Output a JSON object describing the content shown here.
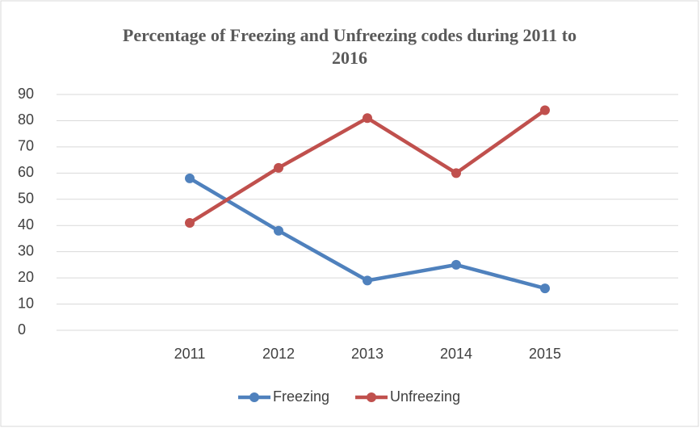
{
  "chart_data": {
    "type": "line",
    "title": "Percentage of Freezing and Unfreezing codes during 2011 to 2016",
    "categories": [
      null,
      "2011",
      "2012",
      "2013",
      "2014",
      "2015",
      null
    ],
    "series": [
      {
        "name": "Freezing",
        "color": "#4f81bd",
        "values": [
          null,
          58,
          38,
          19,
          25,
          16,
          null
        ]
      },
      {
        "name": "Unfreezing",
        "color": "#c0504d",
        "values": [
          null,
          41,
          62,
          81,
          60,
          84,
          null
        ]
      }
    ],
    "ylim": [
      0,
      90
    ],
    "yticks": [
      0,
      10,
      20,
      30,
      40,
      50,
      60,
      70,
      80,
      90
    ],
    "grid": true,
    "legend": "bottom"
  }
}
